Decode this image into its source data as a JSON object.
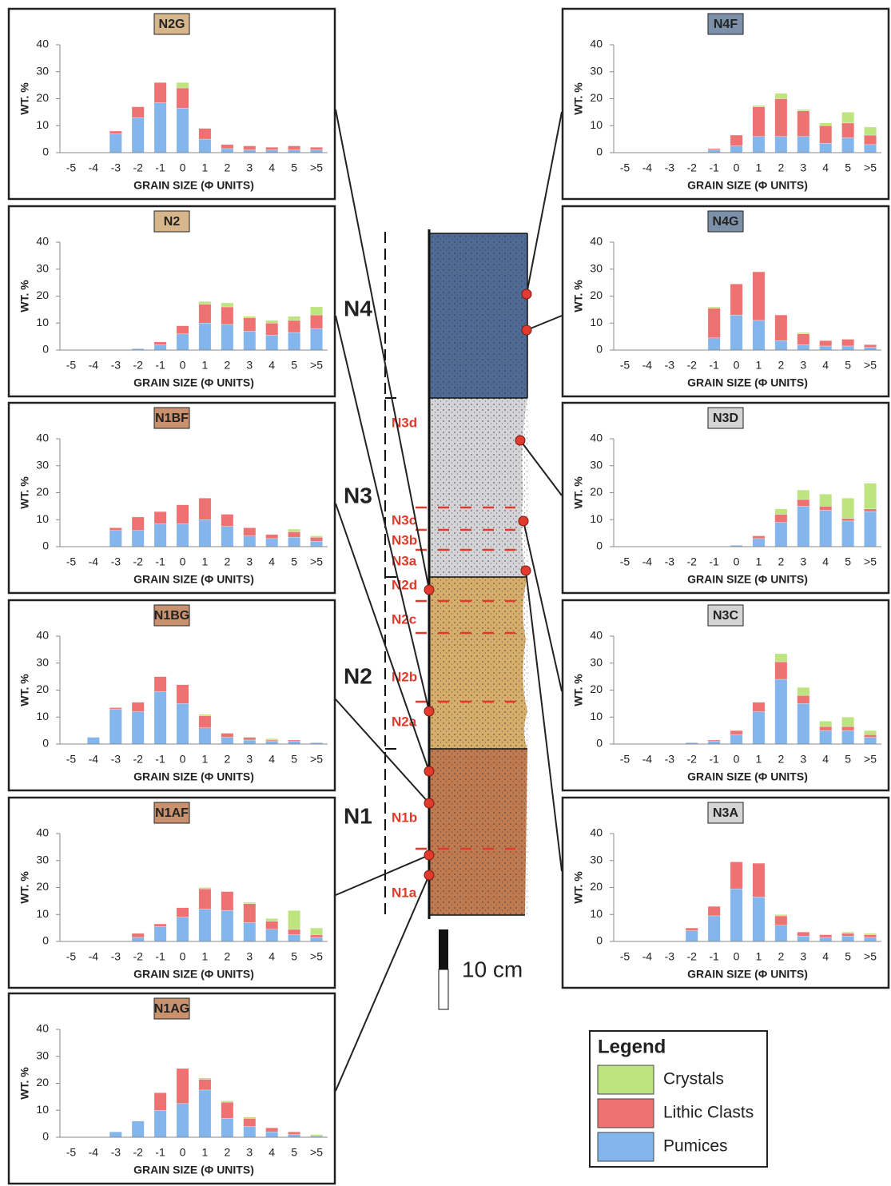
{
  "chart_data": [
    {
      "type": "bar",
      "stacked": true,
      "title": "N2G",
      "title_color": "#d6b68a",
      "xlabel": "GRAIN SIZE (Φ UNITS)",
      "ylabel": "WT. %",
      "categories": [
        "-5",
        "-4",
        "-3",
        "-2",
        "-1",
        "0",
        "1",
        "2",
        "3",
        "4",
        "5",
        ">5"
      ],
      "ylim": [
        0,
        40
      ],
      "yticks": [
        0,
        10,
        20,
        30,
        40
      ],
      "series": [
        {
          "name": "Pumices",
          "values": [
            0,
            0,
            7,
            13,
            18.5,
            16.5,
            5,
            1.5,
            1,
            1,
            1,
            1
          ]
        },
        {
          "name": "Lithic Clasts",
          "values": [
            0,
            0,
            1,
            4,
            7.5,
            7.5,
            4,
            1.5,
            1.5,
            1,
            1.5,
            1
          ]
        },
        {
          "name": "Crystals",
          "values": [
            0,
            0,
            0,
            0,
            0,
            2,
            0,
            0,
            0,
            0,
            0,
            0
          ]
        }
      ]
    },
    {
      "type": "bar",
      "stacked": true,
      "title": "N2",
      "title_color": "#d6b68a",
      "xlabel": "GRAIN SIZE (Φ UNITS)",
      "ylabel": "WT. %",
      "categories": [
        "-5",
        "-4",
        "-3",
        "-2",
        "-1",
        "0",
        "1",
        "2",
        "3",
        "4",
        "5",
        ">5"
      ],
      "ylim": [
        0,
        40
      ],
      "yticks": [
        0,
        10,
        20,
        30,
        40
      ],
      "series": [
        {
          "name": "Pumices",
          "values": [
            0,
            0,
            0,
            0.5,
            2,
            6,
            10,
            9.5,
            7,
            5.5,
            6.5,
            8
          ]
        },
        {
          "name": "Lithic Clasts",
          "values": [
            0,
            0,
            0,
            0,
            1,
            3,
            7,
            6.5,
            5,
            4.5,
            4.5,
            5
          ]
        },
        {
          "name": "Crystals",
          "values": [
            0,
            0,
            0,
            0,
            0,
            0,
            1,
            1.5,
            0.5,
            1,
            1.5,
            3
          ]
        }
      ]
    },
    {
      "type": "bar",
      "stacked": true,
      "title": "N1BF",
      "title_color": "#c9916d",
      "xlabel": "GRAIN SIZE (Φ UNITS)",
      "ylabel": "WT. %",
      "categories": [
        "-5",
        "-4",
        "-3",
        "-2",
        "-1",
        "0",
        "1",
        "2",
        "3",
        "4",
        "5",
        ">5"
      ],
      "ylim": [
        0,
        40
      ],
      "yticks": [
        0,
        10,
        20,
        30,
        40
      ],
      "series": [
        {
          "name": "Pumices",
          "values": [
            0,
            0,
            6,
            6,
            8.5,
            8.5,
            10,
            7.5,
            4,
            3,
            3.5,
            2
          ]
        },
        {
          "name": "Lithic Clasts",
          "values": [
            0,
            0,
            1,
            5,
            4.5,
            7,
            8,
            4.5,
            3,
            1.5,
            2,
            1.5
          ]
        },
        {
          "name": "Crystals",
          "values": [
            0,
            0,
            0,
            0,
            0,
            0,
            0,
            0,
            0,
            0,
            1,
            0.5
          ]
        }
      ]
    },
    {
      "type": "bar",
      "stacked": true,
      "title": "N1BG",
      "title_color": "#c9916d",
      "xlabel": "GRAIN SIZE (Φ UNITS)",
      "ylabel": "WT. %",
      "categories": [
        "-5",
        "-4",
        "-3",
        "-2",
        "-1",
        "0",
        "1",
        "2",
        "3",
        "4",
        "5",
        ">5"
      ],
      "ylim": [
        0,
        40
      ],
      "yticks": [
        0,
        10,
        20,
        30,
        40
      ],
      "series": [
        {
          "name": "Pumices",
          "values": [
            0,
            2.5,
            13,
            12,
            19.5,
            15,
            6,
            2.5,
            1.5,
            1,
            1,
            0.5
          ]
        },
        {
          "name": "Lithic Clasts",
          "values": [
            0,
            0,
            0.5,
            3.5,
            5.5,
            7,
            4.5,
            1.5,
            1,
            0.5,
            0.5,
            0
          ]
        },
        {
          "name": "Crystals",
          "values": [
            0,
            0,
            0,
            0,
            0,
            0,
            0.5,
            0,
            0,
            0.5,
            0,
            0
          ]
        }
      ]
    },
    {
      "type": "bar",
      "stacked": true,
      "title": "N1AF",
      "title_color": "#c9916d",
      "xlabel": "GRAIN SIZE (Φ UNITS)",
      "ylabel": "WT. %",
      "categories": [
        "-5",
        "-4",
        "-3",
        "-2",
        "-1",
        "0",
        "1",
        "2",
        "3",
        "4",
        "5",
        ">5"
      ],
      "ylim": [
        0,
        40
      ],
      "yticks": [
        0,
        10,
        20,
        30,
        40
      ],
      "series": [
        {
          "name": "Pumices",
          "values": [
            0,
            0,
            0,
            1.5,
            5.5,
            9,
            12,
            11.5,
            7,
            4.5,
            2.5,
            1.5
          ]
        },
        {
          "name": "Lithic Clasts",
          "values": [
            0,
            0,
            0,
            1.5,
            1,
            3.5,
            7.5,
            7,
            7,
            3,
            2,
            1
          ]
        },
        {
          "name": "Crystals",
          "values": [
            0,
            0,
            0,
            0,
            0,
            0,
            0.5,
            0,
            0.5,
            1,
            7,
            2.5
          ]
        }
      ]
    },
    {
      "type": "bar",
      "stacked": true,
      "title": "N1AG",
      "title_color": "#c9916d",
      "xlabel": "GRAIN SIZE (Φ UNITS)",
      "ylabel": "WT. %",
      "categories": [
        "-5",
        "-4",
        "-3",
        "-2",
        "-1",
        "0",
        "1",
        "2",
        "3",
        "4",
        "5",
        ">5"
      ],
      "ylim": [
        0,
        40
      ],
      "yticks": [
        0,
        10,
        20,
        30,
        40
      ],
      "series": [
        {
          "name": "Pumices",
          "values": [
            0,
            0,
            2,
            6,
            10,
            12.5,
            17.5,
            7,
            4,
            2,
            1,
            0.5
          ]
        },
        {
          "name": "Lithic Clasts",
          "values": [
            0,
            0,
            0,
            0,
            6.5,
            13,
            4,
            6,
            3,
            1.5,
            1,
            0
          ]
        },
        {
          "name": "Crystals",
          "values": [
            0,
            0,
            0,
            0,
            0,
            0,
            0.5,
            0.5,
            0.5,
            0,
            0,
            0.5
          ]
        }
      ]
    },
    {
      "type": "bar",
      "stacked": true,
      "title": "N4F",
      "title_color": "#7d90aa",
      "xlabel": "GRAIN SIZE (Φ UNITS)",
      "ylabel": "WT. %",
      "categories": [
        "-5",
        "-4",
        "-3",
        "-2",
        "-1",
        "0",
        "1",
        "2",
        "3",
        "4",
        "5",
        ">5"
      ],
      "ylim": [
        0,
        40
      ],
      "yticks": [
        0,
        10,
        20,
        30,
        40
      ],
      "series": [
        {
          "name": "Pumices",
          "values": [
            0,
            0,
            0,
            0,
            1,
            2.5,
            6,
            6,
            6,
            3.5,
            5.5,
            3
          ]
        },
        {
          "name": "Lithic Clasts",
          "values": [
            0,
            0,
            0,
            0,
            0.5,
            4,
            11,
            14,
            9.5,
            6.5,
            5.5,
            3.5
          ]
        },
        {
          "name": "Crystals",
          "values": [
            0,
            0,
            0,
            0,
            0,
            0,
            0.5,
            2,
            0.5,
            1,
            4,
            3
          ]
        }
      ]
    },
    {
      "type": "bar",
      "stacked": true,
      "title": "N4G",
      "title_color": "#7d90aa",
      "xlabel": "GRAIN SIZE (Φ UNITS)",
      "ylabel": "WT. %",
      "categories": [
        "-5",
        "-4",
        "-3",
        "-2",
        "-1",
        "0",
        "1",
        "2",
        "3",
        "4",
        "5",
        ">5"
      ],
      "ylim": [
        0,
        40
      ],
      "yticks": [
        0,
        10,
        20,
        30,
        40
      ],
      "series": [
        {
          "name": "Pumices",
          "values": [
            0,
            0,
            0,
            0,
            4.5,
            13,
            11,
            3.5,
            2,
            1.5,
            1.5,
            1
          ]
        },
        {
          "name": "Lithic Clasts",
          "values": [
            0,
            0,
            0,
            0,
            11,
            11.5,
            18,
            9.5,
            4,
            2,
            2.5,
            1
          ]
        },
        {
          "name": "Crystals",
          "values": [
            0,
            0,
            0,
            0,
            0.5,
            0,
            0,
            0,
            0.5,
            0,
            0,
            0
          ]
        }
      ]
    },
    {
      "type": "bar",
      "stacked": true,
      "title": "N3D",
      "title_color": "#d4d4d4",
      "xlabel": "GRAIN SIZE (Φ UNITS)",
      "ylabel": "WT. %",
      "categories": [
        "-5",
        "-4",
        "-3",
        "-2",
        "-1",
        "0",
        "1",
        "2",
        "3",
        "4",
        "5",
        ">5"
      ],
      "ylim": [
        0,
        40
      ],
      "yticks": [
        0,
        10,
        20,
        30,
        40
      ],
      "series": [
        {
          "name": "Pumices",
          "values": [
            0,
            0,
            0,
            0,
            0,
            0.5,
            3,
            9,
            15,
            13.5,
            9.5,
            13
          ]
        },
        {
          "name": "Lithic Clasts",
          "values": [
            0,
            0,
            0,
            0,
            0,
            0,
            1,
            3,
            2.5,
            1.5,
            1,
            1
          ]
        },
        {
          "name": "Crystals",
          "values": [
            0,
            0,
            0,
            0,
            0,
            0,
            0,
            2,
            3.5,
            4.5,
            7.5,
            9.5
          ]
        }
      ]
    },
    {
      "type": "bar",
      "stacked": true,
      "title": "N3C",
      "title_color": "#d4d4d4",
      "xlabel": "GRAIN SIZE (Φ UNITS)",
      "ylabel": "WT. %",
      "categories": [
        "-5",
        "-4",
        "-3",
        "-2",
        "-1",
        "0",
        "1",
        "2",
        "3",
        "4",
        "5",
        ">5"
      ],
      "ylim": [
        0,
        40
      ],
      "yticks": [
        0,
        10,
        20,
        30,
        40
      ],
      "series": [
        {
          "name": "Pumices",
          "values": [
            0,
            0,
            0,
            0.5,
            1,
            3.5,
            12,
            24,
            15,
            5,
            5,
            2.5
          ]
        },
        {
          "name": "Lithic Clasts",
          "values": [
            0,
            0,
            0,
            0,
            0.5,
            1.5,
            3.5,
            6.5,
            3,
            1.5,
            1.5,
            1
          ]
        },
        {
          "name": "Crystals",
          "values": [
            0,
            0,
            0,
            0,
            0,
            0,
            0,
            3,
            3,
            2,
            3.5,
            1.5
          ]
        }
      ]
    },
    {
      "type": "bar",
      "stacked": true,
      "title": "N3A",
      "title_color": "#d4d4d4",
      "xlabel": "GRAIN SIZE (Φ UNITS)",
      "ylabel": "WT. %",
      "categories": [
        "-5",
        "-4",
        "-3",
        "-2",
        "-1",
        "0",
        "1",
        "2",
        "3",
        "4",
        "5",
        ">5"
      ],
      "ylim": [
        0,
        40
      ],
      "yticks": [
        0,
        10,
        20,
        30,
        40
      ],
      "series": [
        {
          "name": "Pumices",
          "values": [
            0,
            0,
            0,
            4,
            9.5,
            19.5,
            16.5,
            6,
            2,
            1.5,
            2,
            1.5
          ]
        },
        {
          "name": "Lithic Clasts",
          "values": [
            0,
            0,
            0,
            1,
            3.5,
            10,
            12.5,
            3.5,
            1.5,
            1,
            1,
            1
          ]
        },
        {
          "name": "Crystals",
          "values": [
            0,
            0,
            0,
            0,
            0,
            0,
            0,
            0.5,
            0,
            0,
            0.5,
            0.5
          ]
        }
      ]
    }
  ],
  "column": {
    "units": [
      "N4",
      "N3",
      "N2",
      "N1"
    ],
    "subunits": [
      "N3d",
      "N3c",
      "N3b",
      "N3a",
      "N2d",
      "N2c",
      "N2b",
      "N2a",
      "N1b",
      "N1a"
    ],
    "scale_label": "10 cm"
  },
  "legend": {
    "title": "Legend",
    "items": [
      {
        "name": "Crystals",
        "color": "#bde47e"
      },
      {
        "name": "Lithic Clasts",
        "color": "#ee7272"
      },
      {
        "name": "Pumices",
        "color": "#82b6ec"
      }
    ]
  }
}
